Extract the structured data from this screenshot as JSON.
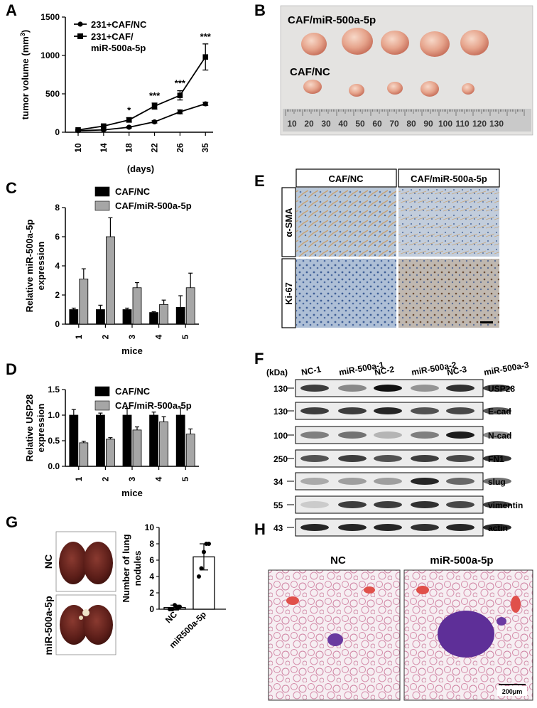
{
  "panels": {
    "A": "A",
    "B": "B",
    "C": "C",
    "D": "D",
    "E": "E",
    "F": "F",
    "G": "G",
    "H": "H"
  },
  "chart_data": [
    {
      "panel": "A",
      "type": "line",
      "x": [
        10,
        14,
        18,
        22,
        26,
        35
      ],
      "series": [
        {
          "name": "231+CAF/NC",
          "values": [
            20,
            30,
            65,
            135,
            265,
            370
          ],
          "errors": [
            5,
            8,
            10,
            15,
            25,
            20
          ],
          "marker": "circle"
        },
        {
          "name": "231+CAF/\nmiR-500a-5p",
          "values": [
            30,
            80,
            160,
            340,
            480,
            980
          ],
          "errors": [
            8,
            15,
            30,
            40,
            60,
            170
          ],
          "marker": "square"
        }
      ],
      "significance": [
        {
          "x": 18,
          "label": "*"
        },
        {
          "x": 22,
          "label": "***"
        },
        {
          "x": 26,
          "label": "***"
        },
        {
          "x": 35,
          "label": "***"
        }
      ],
      "xlabel": "(days)",
      "ylabel": "tumor volume (mm3)",
      "ylim": [
        0,
        1500
      ],
      "yticks": [
        0,
        500,
        1000,
        1500
      ]
    },
    {
      "panel": "C",
      "type": "bar",
      "categories": [
        "1",
        "2",
        "3",
        "4",
        "5"
      ],
      "series": [
        {
          "name": "CAF/NC",
          "values": [
            1.0,
            1.0,
            1.0,
            0.8,
            1.15
          ],
          "errors": [
            0.1,
            0.3,
            0.1,
            0.05,
            0.8
          ],
          "color": "#000000"
        },
        {
          "name": "CAF/miR-500a-5p",
          "values": [
            3.1,
            6.0,
            2.5,
            1.35,
            2.5
          ],
          "errors": [
            0.7,
            1.3,
            0.35,
            0.3,
            1.0
          ],
          "color": "#a6a6a6"
        }
      ],
      "xlabel": "mice",
      "ylabel": "Relative miR-500a-5p\nexpression",
      "ylim": [
        0,
        8
      ],
      "yticks": [
        0,
        2,
        4,
        6,
        8
      ]
    },
    {
      "panel": "D",
      "type": "bar",
      "categories": [
        "1",
        "2",
        "3",
        "4",
        "5"
      ],
      "series": [
        {
          "name": "CAF/NC",
          "values": [
            1.0,
            1.0,
            1.0,
            1.0,
            1.0
          ],
          "errors": [
            0.11,
            0.04,
            0.13,
            0.06,
            0.14
          ],
          "color": "#000000"
        },
        {
          "name": "CAF/miR-500a-5p",
          "values": [
            0.46,
            0.53,
            0.71,
            0.87,
            0.63
          ],
          "errors": [
            0.03,
            0.03,
            0.06,
            0.1,
            0.1
          ],
          "color": "#a6a6a6"
        }
      ],
      "xlabel": "mice",
      "ylabel": "Relative USP28\nexpression",
      "ylim": [
        0,
        1.5
      ],
      "yticks": [
        "0.0",
        "0.5",
        "1.0",
        "1.5"
      ]
    },
    {
      "panel": "G",
      "type": "bar",
      "categories": [
        "NC",
        "miR500a-5p"
      ],
      "values": [
        0.2,
        6.4
      ],
      "errors": [
        0.3,
        1.6
      ],
      "points": [
        [
          0,
          0,
          0.5,
          0.2,
          0.3
        ],
        [
          4,
          5,
          7,
          8,
          8
        ]
      ],
      "ylabel": "Number of lung\nnodules",
      "ylim": [
        0,
        10
      ],
      "yticks": [
        0,
        2,
        4,
        6,
        8,
        10
      ]
    }
  ],
  "panelB": {
    "row1": "CAF/miR-500a-5p",
    "row2": "CAF/NC",
    "ruler": [
      "10",
      "20",
      "30",
      "40",
      "50",
      "60",
      "70",
      "80",
      "90",
      "100",
      "110",
      "120",
      "130"
    ]
  },
  "panelE": {
    "cols": [
      "CAF/NC",
      "CAF/miR-500a-5p"
    ],
    "rows": [
      "α-SMA",
      "Ki-67"
    ]
  },
  "panelF": {
    "kda_label": "(kDa)",
    "lanes": [
      "NC-1",
      "miR-500a-1",
      "NC-2",
      "miR-500a-2",
      "NC-3",
      "miR-500a-3"
    ],
    "blots": [
      {
        "kda": "130",
        "name": "USP28"
      },
      {
        "kda": "130",
        "name": "E-cad"
      },
      {
        "kda": "100",
        "name": "N-cad"
      },
      {
        "kda": "250",
        "name": "FN1"
      },
      {
        "kda": "34",
        "name": "slug"
      },
      {
        "kda": "55",
        "name": "vimentin"
      },
      {
        "kda": "43",
        "name": "actin"
      }
    ]
  },
  "panelG": {
    "labels": [
      "NC",
      "miR-500a-5p"
    ]
  },
  "panelH": {
    "titles": [
      "NC",
      "miR-500a-5p"
    ],
    "scale": "200μm"
  }
}
